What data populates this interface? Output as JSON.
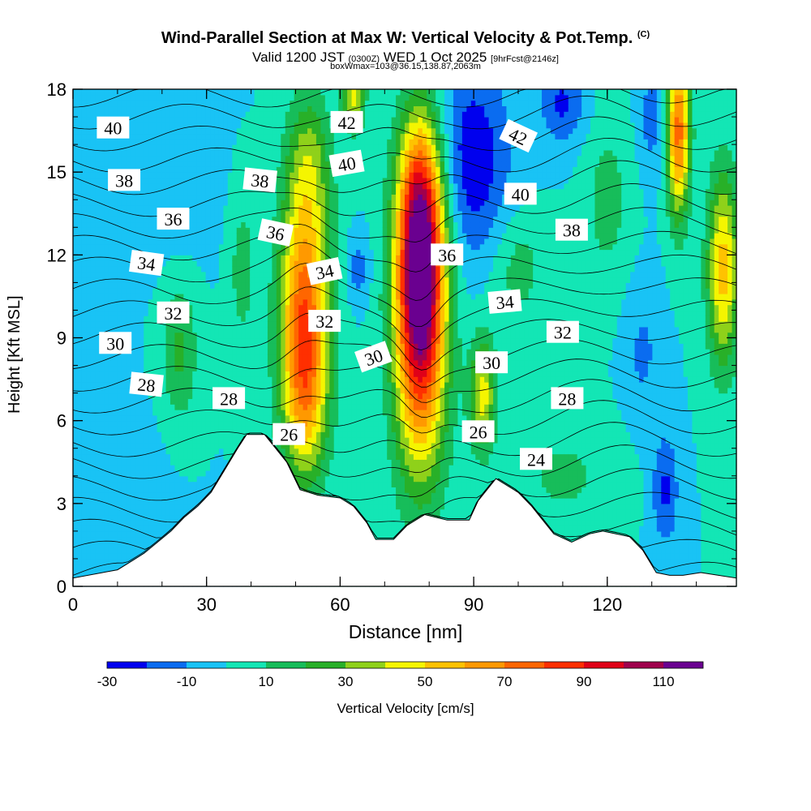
{
  "header": {
    "title": "Wind-Parallel Section at Max W: Vertical Velocity & Pot.Temp.",
    "copyright_mark": "(C)",
    "valid_prefix": "Valid 1200 JST",
    "valid_utc": "(0300Z)",
    "valid_date": "WED 1 Oct 2025",
    "forecast_tag": "[9hrFcst@2146z]",
    "box_info": "boxWmax=103@36.15,138.87,2063m"
  },
  "chart_data": {
    "type": "heatmap",
    "title": "Wind-Parallel Section at Max W: Vertical Velocity & Pot.Temp.",
    "xlabel": "Distance [nm]",
    "ylabel": "Height [Kft MSL]",
    "xlim": [
      0,
      149
    ],
    "ylim": [
      0,
      18
    ],
    "x_ticks": [
      0,
      30,
      60,
      90,
      120
    ],
    "y_ticks": [
      0,
      3,
      6,
      9,
      12,
      15,
      18
    ],
    "colorbar": {
      "label": "Vertical Velocity [cm/s]",
      "levels": [
        -30,
        -20,
        -10,
        0,
        10,
        20,
        30,
        40,
        50,
        60,
        70,
        80,
        90,
        100,
        110,
        120
      ],
      "tick_labels": [
        "-30",
        "-10",
        "10",
        "30",
        "50",
        "70",
        "90",
        "110"
      ],
      "tick_values": [
        -30,
        -10,
        10,
        30,
        50,
        70,
        90,
        110
      ],
      "colors": [
        "#0000ee",
        "#0a6cf0",
        "#19c3f5",
        "#13e6b5",
        "#17bd5a",
        "#28b028",
        "#8fd11a",
        "#f5f500",
        "#ffc200",
        "#ff9900",
        "#ff6600",
        "#ff2f00",
        "#e00018",
        "#a0004d",
        "#6a0090"
      ]
    },
    "background_w": 0,
    "w_features": [
      {
        "x": 78,
        "y": 11.5,
        "sx": 5.5,
        "sy": 4.5,
        "w": 115
      },
      {
        "x": 78,
        "y": 7.0,
        "sx": 6.0,
        "sy": 4.5,
        "w": 40
      },
      {
        "x": 78,
        "y": 14.5,
        "sx": 4.5,
        "sy": 3.0,
        "w": 30
      },
      {
        "x": 52,
        "y": 10.0,
        "sx": 5.5,
        "sy": 4.5,
        "w": 75
      },
      {
        "x": 52,
        "y": 6.5,
        "sx": 5.0,
        "sy": 3.0,
        "w": 30
      },
      {
        "x": 53,
        "y": 15.5,
        "sx": 5.0,
        "sy": 2.5,
        "w": 25
      },
      {
        "x": 136,
        "y": 16.5,
        "sx": 2.5,
        "sy": 3.0,
        "w": 75
      },
      {
        "x": 146,
        "y": 11.5,
        "sx": 3.5,
        "sy": 3.5,
        "w": 55
      },
      {
        "x": 63,
        "y": 17.8,
        "sx": 2.5,
        "sy": 1.2,
        "w": 45
      },
      {
        "x": 92,
        "y": 7.0,
        "sx": 3.0,
        "sy": 2.0,
        "w": 45
      },
      {
        "x": 24,
        "y": 8.5,
        "sx": 4.0,
        "sy": 2.5,
        "w": 22
      },
      {
        "x": 38,
        "y": 11.5,
        "sx": 3.0,
        "sy": 3.0,
        "w": 15
      },
      {
        "x": 100,
        "y": 11.5,
        "sx": 6.0,
        "sy": 2.0,
        "w": 15
      },
      {
        "x": 120,
        "y": 14.0,
        "sx": 5.0,
        "sy": 3.0,
        "w": 15
      },
      {
        "x": 110,
        "y": 4.0,
        "sx": 12.0,
        "sy": 2.0,
        "w": 12
      },
      {
        "x": 90,
        "y": 15.5,
        "sx": 8.0,
        "sy": 3.5,
        "w": -28
      },
      {
        "x": 110,
        "y": 17.5,
        "sx": 5.0,
        "sy": 1.5,
        "w": -22
      },
      {
        "x": 130,
        "y": 17.0,
        "sx": 3.0,
        "sy": 2.0,
        "w": -15
      },
      {
        "x": 133,
        "y": 3.5,
        "sx": 3.0,
        "sy": 2.0,
        "w": -22
      },
      {
        "x": 128,
        "y": 8.5,
        "sx": 4.0,
        "sy": 2.5,
        "w": -12
      },
      {
        "x": 64,
        "y": 11.5,
        "sx": 2.5,
        "sy": 1.2,
        "w": -15
      },
      {
        "x": 20,
        "y": 15.0,
        "sx": 12.0,
        "sy": 3.0,
        "w": -8
      },
      {
        "x": 10,
        "y": 3.0,
        "sx": 10.0,
        "sy": 3.0,
        "w": -8
      }
    ],
    "terrain": {
      "x": [
        0,
        10,
        13,
        16,
        19,
        22,
        25,
        28,
        31,
        34,
        37,
        39,
        43,
        48,
        51,
        55,
        60,
        63,
        66,
        68,
        72,
        75,
        79,
        84,
        89,
        91,
        95,
        100,
        103,
        106,
        108,
        112,
        116,
        119,
        125,
        128,
        131,
        134,
        137,
        141,
        145,
        149
      ],
      "y": [
        0.3,
        0.6,
        0.9,
        1.2,
        1.6,
        2.0,
        2.5,
        2.9,
        3.4,
        4.2,
        5.0,
        5.5,
        5.5,
        4.5,
        3.5,
        3.3,
        3.2,
        2.9,
        2.3,
        1.7,
        1.7,
        2.2,
        2.6,
        2.4,
        2.4,
        3.1,
        3.9,
        3.4,
        2.9,
        2.3,
        1.9,
        1.6,
        1.9,
        2.0,
        1.8,
        1.3,
        0.5,
        0.4,
        0.4,
        0.5,
        0.4,
        0.3
      ]
    },
    "theta_contours": {
      "levels": [
        21,
        22,
        23,
        24,
        25,
        26,
        27,
        28,
        29,
        30,
        31,
        32,
        33,
        34,
        35,
        36,
        37,
        38,
        39,
        40,
        41,
        42,
        43
      ],
      "labels": [
        {
          "text": "40",
          "x": 9,
          "y": 16.6,
          "rot": 0
        },
        {
          "text": "38",
          "x": 11.5,
          "y": 14.7,
          "rot": 0
        },
        {
          "text": "36",
          "x": 22.5,
          "y": 13.3,
          "rot": 0
        },
        {
          "text": "34",
          "x": 16.5,
          "y": 11.7,
          "rot": 8
        },
        {
          "text": "32",
          "x": 22.5,
          "y": 9.9,
          "rot": 0
        },
        {
          "text": "30",
          "x": 9.5,
          "y": 8.8,
          "rot": 0
        },
        {
          "text": "28",
          "x": 16.5,
          "y": 7.3,
          "rot": 6
        },
        {
          "text": "28",
          "x": 35,
          "y": 6.8,
          "rot": 0
        },
        {
          "text": "26",
          "x": 48.5,
          "y": 5.5,
          "rot": 0
        },
        {
          "text": "38",
          "x": 42,
          "y": 14.7,
          "rot": 6
        },
        {
          "text": "36",
          "x": 45.5,
          "y": 12.8,
          "rot": 12
        },
        {
          "text": "34",
          "x": 56.5,
          "y": 11.4,
          "rot": -12
        },
        {
          "text": "32",
          "x": 56.5,
          "y": 9.6,
          "rot": 0
        },
        {
          "text": "42",
          "x": 61.5,
          "y": 16.8,
          "rot": 0
        },
        {
          "text": "40",
          "x": 61.5,
          "y": 15.3,
          "rot": -10
        },
        {
          "text": "30",
          "x": 67.5,
          "y": 8.3,
          "rot": -20
        },
        {
          "text": "36",
          "x": 84,
          "y": 12.0,
          "rot": 0
        },
        {
          "text": "42",
          "x": 100,
          "y": 16.3,
          "rot": 25
        },
        {
          "text": "40",
          "x": 100.5,
          "y": 14.2,
          "rot": 0
        },
        {
          "text": "38",
          "x": 112,
          "y": 12.9,
          "rot": 0
        },
        {
          "text": "34",
          "x": 97,
          "y": 10.3,
          "rot": -5
        },
        {
          "text": "32",
          "x": 110,
          "y": 9.2,
          "rot": 0
        },
        {
          "text": "30",
          "x": 94,
          "y": 8.1,
          "rot": 0
        },
        {
          "text": "28",
          "x": 111,
          "y": 6.8,
          "rot": 0
        },
        {
          "text": "26",
          "x": 91,
          "y": 5.6,
          "rot": 0
        },
        {
          "text": "24",
          "x": 104,
          "y": 4.6,
          "rot": 0
        }
      ]
    }
  }
}
